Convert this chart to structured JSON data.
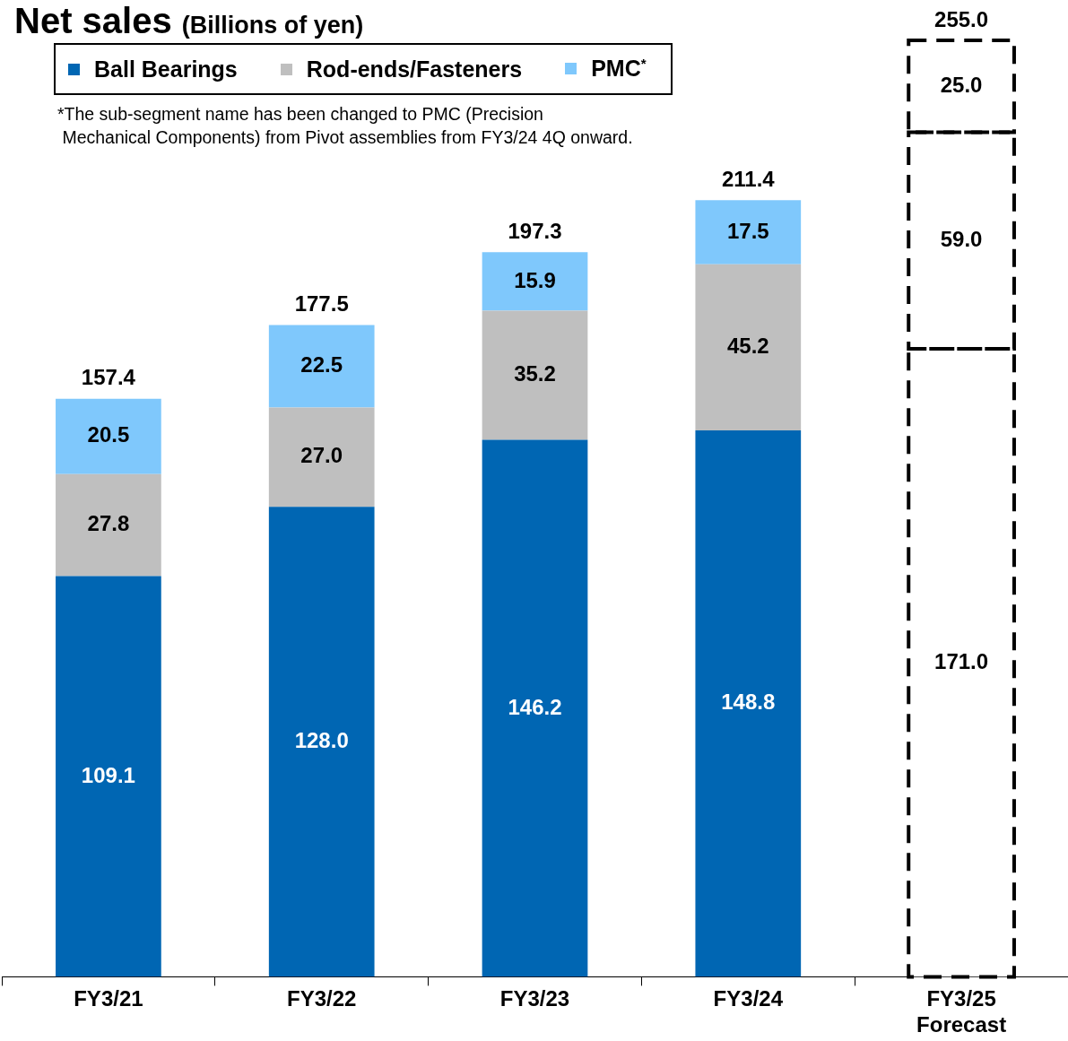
{
  "chart_data": {
    "type": "bar",
    "title": "Net sales",
    "subtitle": "(Billions of yen)",
    "categories": [
      "FY3/21",
      "FY3/22",
      "FY3/23",
      "FY3/24",
      "FY3/25 Forecast"
    ],
    "stacked": true,
    "legend": "top left",
    "grid": false,
    "tick_labels": "x",
    "ylim": [
      0,
      255
    ],
    "series": [
      {
        "name": "Ball Bearings",
        "color": "#0066b3",
        "values": [
          109.1,
          128.0,
          146.2,
          148.8,
          null
        ],
        "value_labels": [
          "109.1",
          "128.0",
          "146.2",
          "148.8",
          null
        ]
      },
      {
        "name": "Rod-ends/Fasteners",
        "color": "#bfbfbf",
        "values": [
          27.8,
          27.0,
          35.2,
          45.2,
          null
        ],
        "value_labels": [
          "27.8",
          "27.0",
          "35.2",
          "45.2",
          null
        ]
      },
      {
        "name": "PMC$^{*}$",
        "color": "#7fc8fc",
        "values": [
          20.5,
          22.5,
          15.9,
          17.5,
          null
        ],
        "value_labels": [
          "20.5",
          "22.5",
          "15.9",
          "17.5",
          null
        ]
      },
      {
        "color": "#ffffff",
        "line_style": "dashed",
        "values": [
          null,
          null,
          null,
          null,
          171.0
        ],
        "value_labels": [
          null,
          null,
          null,
          null,
          "171.0"
        ]
      },
      {
        "color": "#ffffff",
        "line_style": "dashed",
        "values": [
          null,
          null,
          null,
          null,
          59.0
        ],
        "value_labels": [
          null,
          null,
          null,
          null,
          "59.0"
        ]
      },
      {
        "color": "#ffffff",
        "line_style": "dashed",
        "values": [
          null,
          null,
          null,
          null,
          25.0
        ],
        "value_labels": [
          null,
          null,
          null,
          null,
          "25.0"
        ]
      }
    ],
    "totals": [
      "157.4",
      "177.5",
      "197.3",
      "211.4",
      "255.0"
    ],
    "annotations": [
      "*The sub-segment name has been changed to PMC (Precision\n Mechanical Components) from Pivot assemblies from FY3/24 4Q onward."
    ]
  }
}
